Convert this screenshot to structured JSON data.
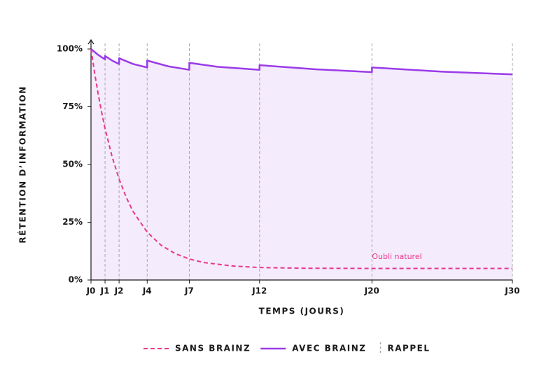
{
  "chart_data": {
    "type": "line",
    "x_label": "TEMPS (JOURS)",
    "y_label": "RÉTENTION D’INFORMATION",
    "xlim": [
      0,
      30
    ],
    "ylim": [
      0,
      100
    ],
    "xticks": [
      {
        "value": 0,
        "label": "J0"
      },
      {
        "value": 1,
        "label": "J1"
      },
      {
        "value": 2,
        "label": "J2"
      },
      {
        "value": 4,
        "label": "J4"
      },
      {
        "value": 7,
        "label": "J7"
      },
      {
        "value": 12,
        "label": "J12"
      },
      {
        "value": 20,
        "label": "J20"
      },
      {
        "value": 30,
        "label": "J30"
      }
    ],
    "yticks": [
      {
        "value": 0,
        "label": "0%"
      },
      {
        "value": 25,
        "label": "25%"
      },
      {
        "value": 50,
        "label": "50%"
      },
      {
        "value": 75,
        "label": "75%"
      },
      {
        "value": 100,
        "label": "100%"
      }
    ],
    "series": [
      {
        "name": "SANS BRAINZ",
        "color": "#e8388a",
        "dashed": true,
        "x": [
          0,
          0.25,
          0.5,
          0.75,
          1,
          1.5,
          2,
          2.5,
          3,
          4,
          5,
          6,
          7,
          8,
          10,
          12,
          15,
          20,
          25,
          30
        ],
        "values": [
          100,
          89.9,
          80.9,
          72.8,
          65.6,
          53.4,
          43.7,
          35.9,
          29.6,
          20.7,
          15.0,
          11.4,
          9.1,
          7.6,
          6.1,
          5.4,
          5.1,
          5.0,
          5.0,
          5.0
        ]
      },
      {
        "name": "AVEC BRAINZ",
        "color": "#9b3be8",
        "fill": "#f4ebfd",
        "x": [
          0,
          0.5,
          1,
          1,
          1.5,
          2,
          2,
          3,
          4,
          4,
          5.5,
          7,
          7,
          9,
          12,
          12,
          16,
          20,
          20,
          25,
          30
        ],
        "values": [
          100,
          97.5,
          95.5,
          97,
          95,
          93.5,
          96,
          93.5,
          92,
          95,
          92.5,
          91,
          94,
          92.3,
          91,
          93,
          91.2,
          90,
          92,
          90.2,
          89
        ]
      }
    ],
    "recalls": {
      "name": "RAPPEL",
      "color": "#a8a8a8",
      "x": [
        1,
        2,
        4,
        7,
        12,
        20,
        30
      ]
    },
    "annotation": {
      "text": "Oubli naturel",
      "x": 20,
      "y": 10,
      "color": "#e8388a"
    }
  }
}
